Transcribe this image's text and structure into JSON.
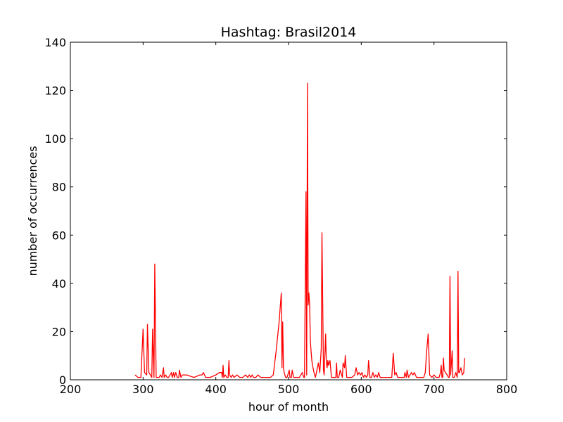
{
  "chart_data": {
    "type": "line",
    "title": "Hashtag: Brasil2014",
    "xlabel": "hour of month",
    "ylabel": "number of occurrences",
    "xlim": [
      200,
      800
    ],
    "ylim": [
      0,
      140
    ],
    "x_ticks": [
      200,
      300,
      400,
      500,
      600,
      700,
      800
    ],
    "y_ticks": [
      0,
      20,
      40,
      60,
      80,
      100,
      120,
      140
    ],
    "x_tick_labels": [
      "200",
      "300",
      "400",
      "500",
      "600",
      "700",
      "800"
    ],
    "y_tick_labels": [
      "0",
      "20",
      "40",
      "60",
      "80",
      "100",
      "120",
      "140"
    ],
    "grid": false,
    "legend": "none",
    "series": [
      {
        "color": "#ff0000",
        "x": [
          289,
          293,
          297,
          300,
          302,
          305,
          306,
          308,
          312,
          313,
          315,
          316,
          318,
          320,
          322,
          324,
          326,
          328,
          329,
          331,
          333,
          335,
          337,
          339,
          340,
          342,
          343,
          345,
          347,
          349,
          350,
          352,
          354,
          356,
          360,
          370,
          378,
          381,
          383,
          386,
          392,
          400,
          405,
          408,
          409,
          410,
          411,
          413,
          415,
          417,
          418,
          419,
          421,
          423,
          425,
          429,
          433,
          437,
          441,
          444,
          446,
          448,
          450,
          452,
          455,
          458,
          462,
          467,
          472,
          475,
          479,
          483,
          487,
          490,
          491,
          492,
          493,
          494,
          496,
          498,
          501,
          502,
          504,
          505,
          507,
          509,
          512,
          515,
          519,
          521,
          522,
          524,
          525,
          526,
          527,
          528,
          529,
          530,
          531,
          532,
          533,
          535,
          537,
          539,
          541,
          543,
          545,
          546,
          548,
          549,
          551,
          552,
          553,
          554,
          555,
          557,
          559,
          562,
          565,
          566,
          567,
          569,
          571,
          572,
          574,
          575,
          577,
          578,
          580,
          582,
          584,
          587,
          591,
          593,
          595,
          597,
          599,
          601,
          603,
          605,
          607,
          609,
          610,
          612,
          614,
          616,
          618,
          620,
          622,
          624,
          626,
          628,
          631,
          634,
          638,
          642,
          644,
          646,
          648,
          650,
          653,
          656,
          659,
          660,
          662,
          663,
          665,
          667,
          669,
          671,
          673,
          676,
          679,
          683,
          686,
          688,
          690,
          692,
          694,
          697,
          700,
          703,
          705,
          707,
          709,
          710,
          711,
          712,
          713,
          714,
          716,
          718,
          720,
          721,
          722,
          723,
          725,
          726,
          727,
          728,
          730,
          732,
          733,
          734,
          735,
          737,
          739,
          741,
          742
        ],
        "y": [
          2,
          1,
          1,
          21,
          3,
          2,
          23,
          3,
          1,
          21,
          1,
          48,
          1,
          1,
          1,
          2,
          1,
          5,
          1,
          2,
          1,
          1,
          2,
          3,
          1,
          3,
          1,
          3,
          1,
          1,
          4,
          1,
          2,
          2,
          2,
          1,
          2,
          2,
          3,
          1,
          1,
          2,
          3,
          3,
          1,
          6,
          1,
          2,
          1,
          1,
          8,
          2,
          1,
          2,
          1,
          2,
          1,
          1,
          2,
          1,
          2,
          1,
          2,
          1,
          1,
          2,
          1,
          1,
          1,
          1,
          2,
          12,
          24,
          36,
          5,
          24,
          5,
          3,
          1,
          1,
          4,
          1,
          1,
          4,
          1,
          1,
          1,
          1,
          3,
          1,
          1,
          78,
          2,
          123,
          31,
          36,
          31,
          16,
          12,
          8,
          6,
          3,
          1,
          4,
          7,
          3,
          13,
          61,
          4,
          2,
          19,
          7,
          5,
          8,
          6,
          8,
          1,
          1,
          1,
          7,
          1,
          1,
          4,
          3,
          1,
          7,
          5,
          10,
          1,
          1,
          1,
          1,
          2,
          5,
          2,
          3,
          2,
          3,
          1,
          2,
          1,
          2,
          8,
          1,
          1,
          3,
          1,
          2,
          1,
          3,
          1,
          1,
          1,
          1,
          1,
          1,
          11,
          2,
          3,
          1,
          1,
          1,
          1,
          3,
          1,
          4,
          1,
          2,
          3,
          2,
          3,
          1,
          1,
          1,
          1,
          3,
          12,
          19,
          2,
          1,
          2,
          1,
          1,
          1,
          3,
          6,
          1,
          1,
          9,
          4,
          3,
          2,
          1,
          1,
          43,
          2,
          12,
          1,
          1,
          1,
          3,
          1,
          45,
          3,
          3,
          5,
          2,
          3,
          9
        ]
      }
    ]
  }
}
